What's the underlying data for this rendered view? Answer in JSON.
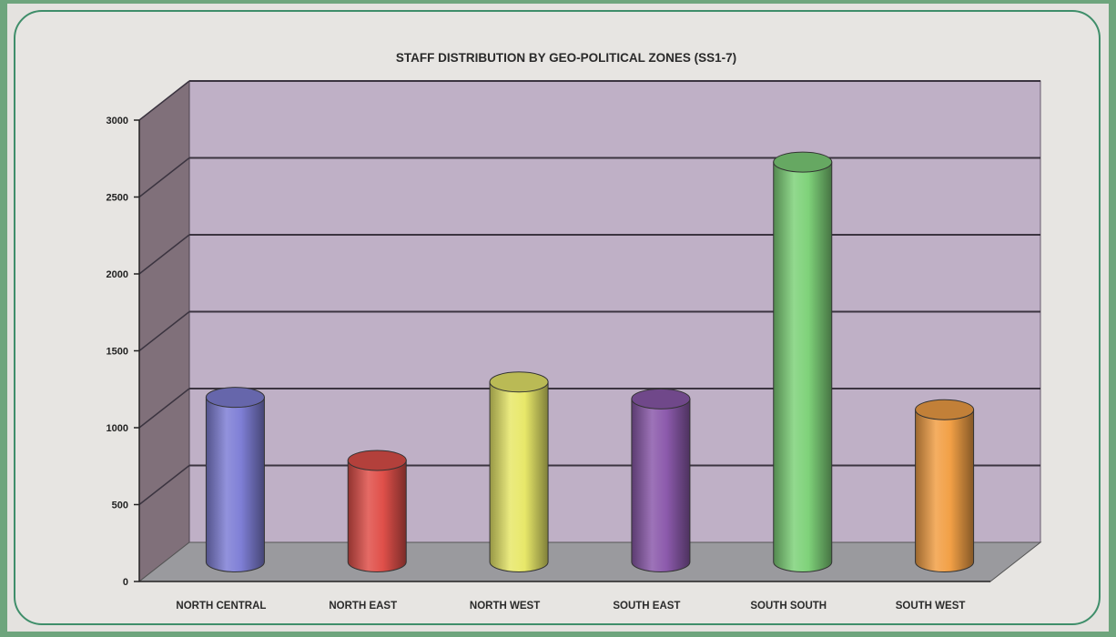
{
  "chart_data": {
    "type": "bar",
    "title": "STAFF DISTRIBUTION BY GEO-POLITICAL ZONES (SS1-7)",
    "xlabel": "",
    "ylabel": "",
    "categories": [
      "NORTH CENTRAL",
      "NORTH EAST",
      "NORTH WEST",
      "SOUTH EAST",
      "SOUTH SOUTH",
      "SOUTH WEST"
    ],
    "values": [
      1070,
      660,
      1170,
      1060,
      2600,
      990
    ],
    "ylim": [
      0,
      3000
    ],
    "yticks": [
      "0",
      "500",
      "1000",
      "1500",
      "2000",
      "2500",
      "3000"
    ],
    "style": "3d-cylinder",
    "grid": true,
    "colors": [
      "#7f7fd6",
      "#e0504a",
      "#e8e86a",
      "#8c5aac",
      "#7fd27a",
      "#f2a046"
    ],
    "wall_color": "#bfb0c6",
    "floor_color": "#9a9a9e",
    "frame_color": "#6ea57d"
  }
}
